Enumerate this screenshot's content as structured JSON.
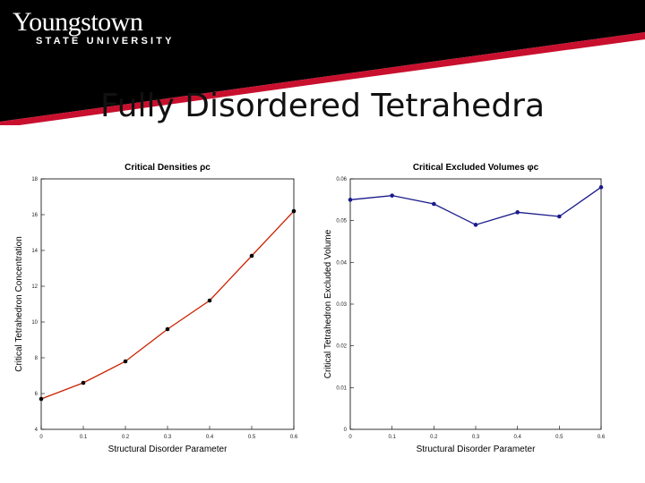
{
  "logo": {
    "main": "Youngstown",
    "sub": "STATE UNIVERSITY"
  },
  "slide": {
    "title": "Fully Disordered Tetrahedra",
    "footer_number": ""
  },
  "chart_data": [
    {
      "type": "line",
      "title": "Critical Densities ρc",
      "xlabel": "Structural Disorder Parameter",
      "ylabel": "Critical Tetrahedron Concentration",
      "x": [
        0,
        0.1,
        0.2,
        0.3,
        0.4,
        0.5,
        0.6
      ],
      "xticks": [
        "0",
        "0.1",
        "0.2",
        "0.3",
        "0.4",
        "0.5",
        "0.6"
      ],
      "yticks": [
        "4",
        "6",
        "8",
        "10",
        "12",
        "14",
        "16",
        "18"
      ],
      "xlim": [
        0,
        0.6
      ],
      "ylim": [
        4,
        18
      ],
      "series": [
        {
          "values": [
            5.7,
            6.6,
            7.8,
            9.6,
            11.2,
            13.7,
            16.2
          ],
          "color": "#cc2200"
        }
      ],
      "marker_color": "#000000",
      "grid": false
    },
    {
      "type": "line",
      "title": "Critical Excluded Volumes φc",
      "xlabel": "Structural Disorder Parameter",
      "ylabel": "Critical Tetrahedron Excluded Volume",
      "x": [
        0,
        0.1,
        0.2,
        0.3,
        0.4,
        0.5,
        0.6
      ],
      "xticks": [
        "0",
        "0.1",
        "0.2",
        "0.3",
        "0.4",
        "0.5",
        "0.6"
      ],
      "yticks": [
        "0",
        "0.01",
        "0.02",
        "0.03",
        "0.04",
        "0.05",
        "0.06"
      ],
      "xlim": [
        0,
        0.6
      ],
      "ylim": [
        0,
        0.06
      ],
      "series": [
        {
          "values": [
            0.055,
            0.056,
            0.054,
            0.049,
            0.052,
            0.051,
            0.058
          ],
          "color": "#1a1a8c"
        }
      ],
      "marker_color": "#1a1a8c",
      "grid": false
    }
  ]
}
